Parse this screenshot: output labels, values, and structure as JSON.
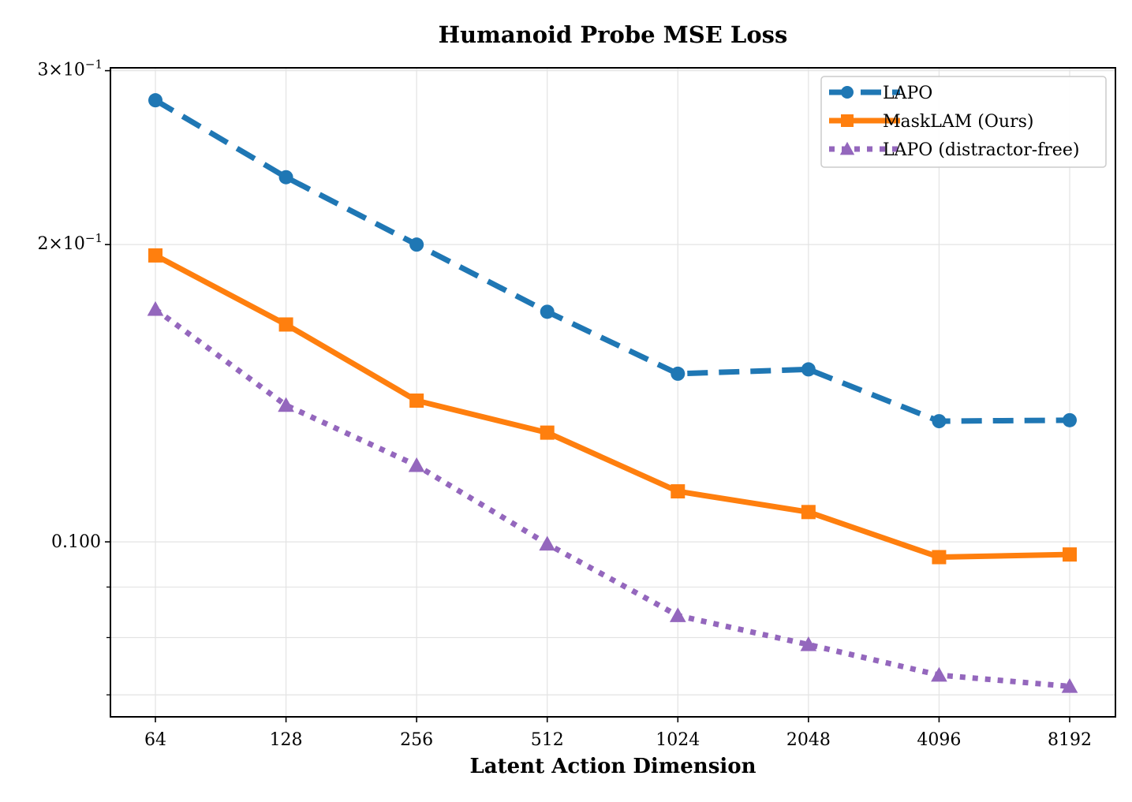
{
  "chart_data": {
    "type": "line",
    "title": "Humanoid Probe MSE Loss",
    "xlabel": "Latent Action Dimension",
    "ylabel": "",
    "xscale": "log2",
    "yscale": "log",
    "categories": [
      "64",
      "128",
      "256",
      "512",
      "1024",
      "2048",
      "4096",
      "8192"
    ],
    "x": [
      64,
      128,
      256,
      512,
      1024,
      2048,
      4096,
      8192
    ],
    "ylim": [
      0.0665,
      0.302
    ],
    "y_major_ticks": [
      {
        "value": 0.3,
        "base": "3",
        "exp": "−1"
      },
      {
        "value": 0.2,
        "base": "2",
        "exp": "−1"
      }
    ],
    "y_plain_ticks": [
      {
        "value": 0.1,
        "label": "0.100"
      }
    ],
    "y_minor_ticks": [
      0.09,
      0.08,
      0.07
    ],
    "grid": true,
    "legend_position": "top-right",
    "series": [
      {
        "name": "LAPO",
        "color": "#1f77b4",
        "marker": "circle",
        "linestyle": "dashed",
        "values": [
          0.28,
          0.234,
          0.2,
          0.171,
          0.148,
          0.1495,
          0.1325,
          0.1328
        ]
      },
      {
        "name": "MaskLAM (Ours)",
        "color": "#ff7f0e",
        "marker": "square",
        "linestyle": "solid",
        "values": [
          0.195,
          0.166,
          0.139,
          0.129,
          0.1125,
          0.1072,
          0.0965,
          0.0971
        ]
      },
      {
        "name": "LAPO (distractor-free)",
        "color": "#9467bd",
        "marker": "triangle",
        "linestyle": "dotted",
        "values": [
          0.172,
          0.1375,
          0.1195,
          0.0995,
          0.0842,
          0.0787,
          0.0733,
          0.0714
        ]
      }
    ]
  }
}
